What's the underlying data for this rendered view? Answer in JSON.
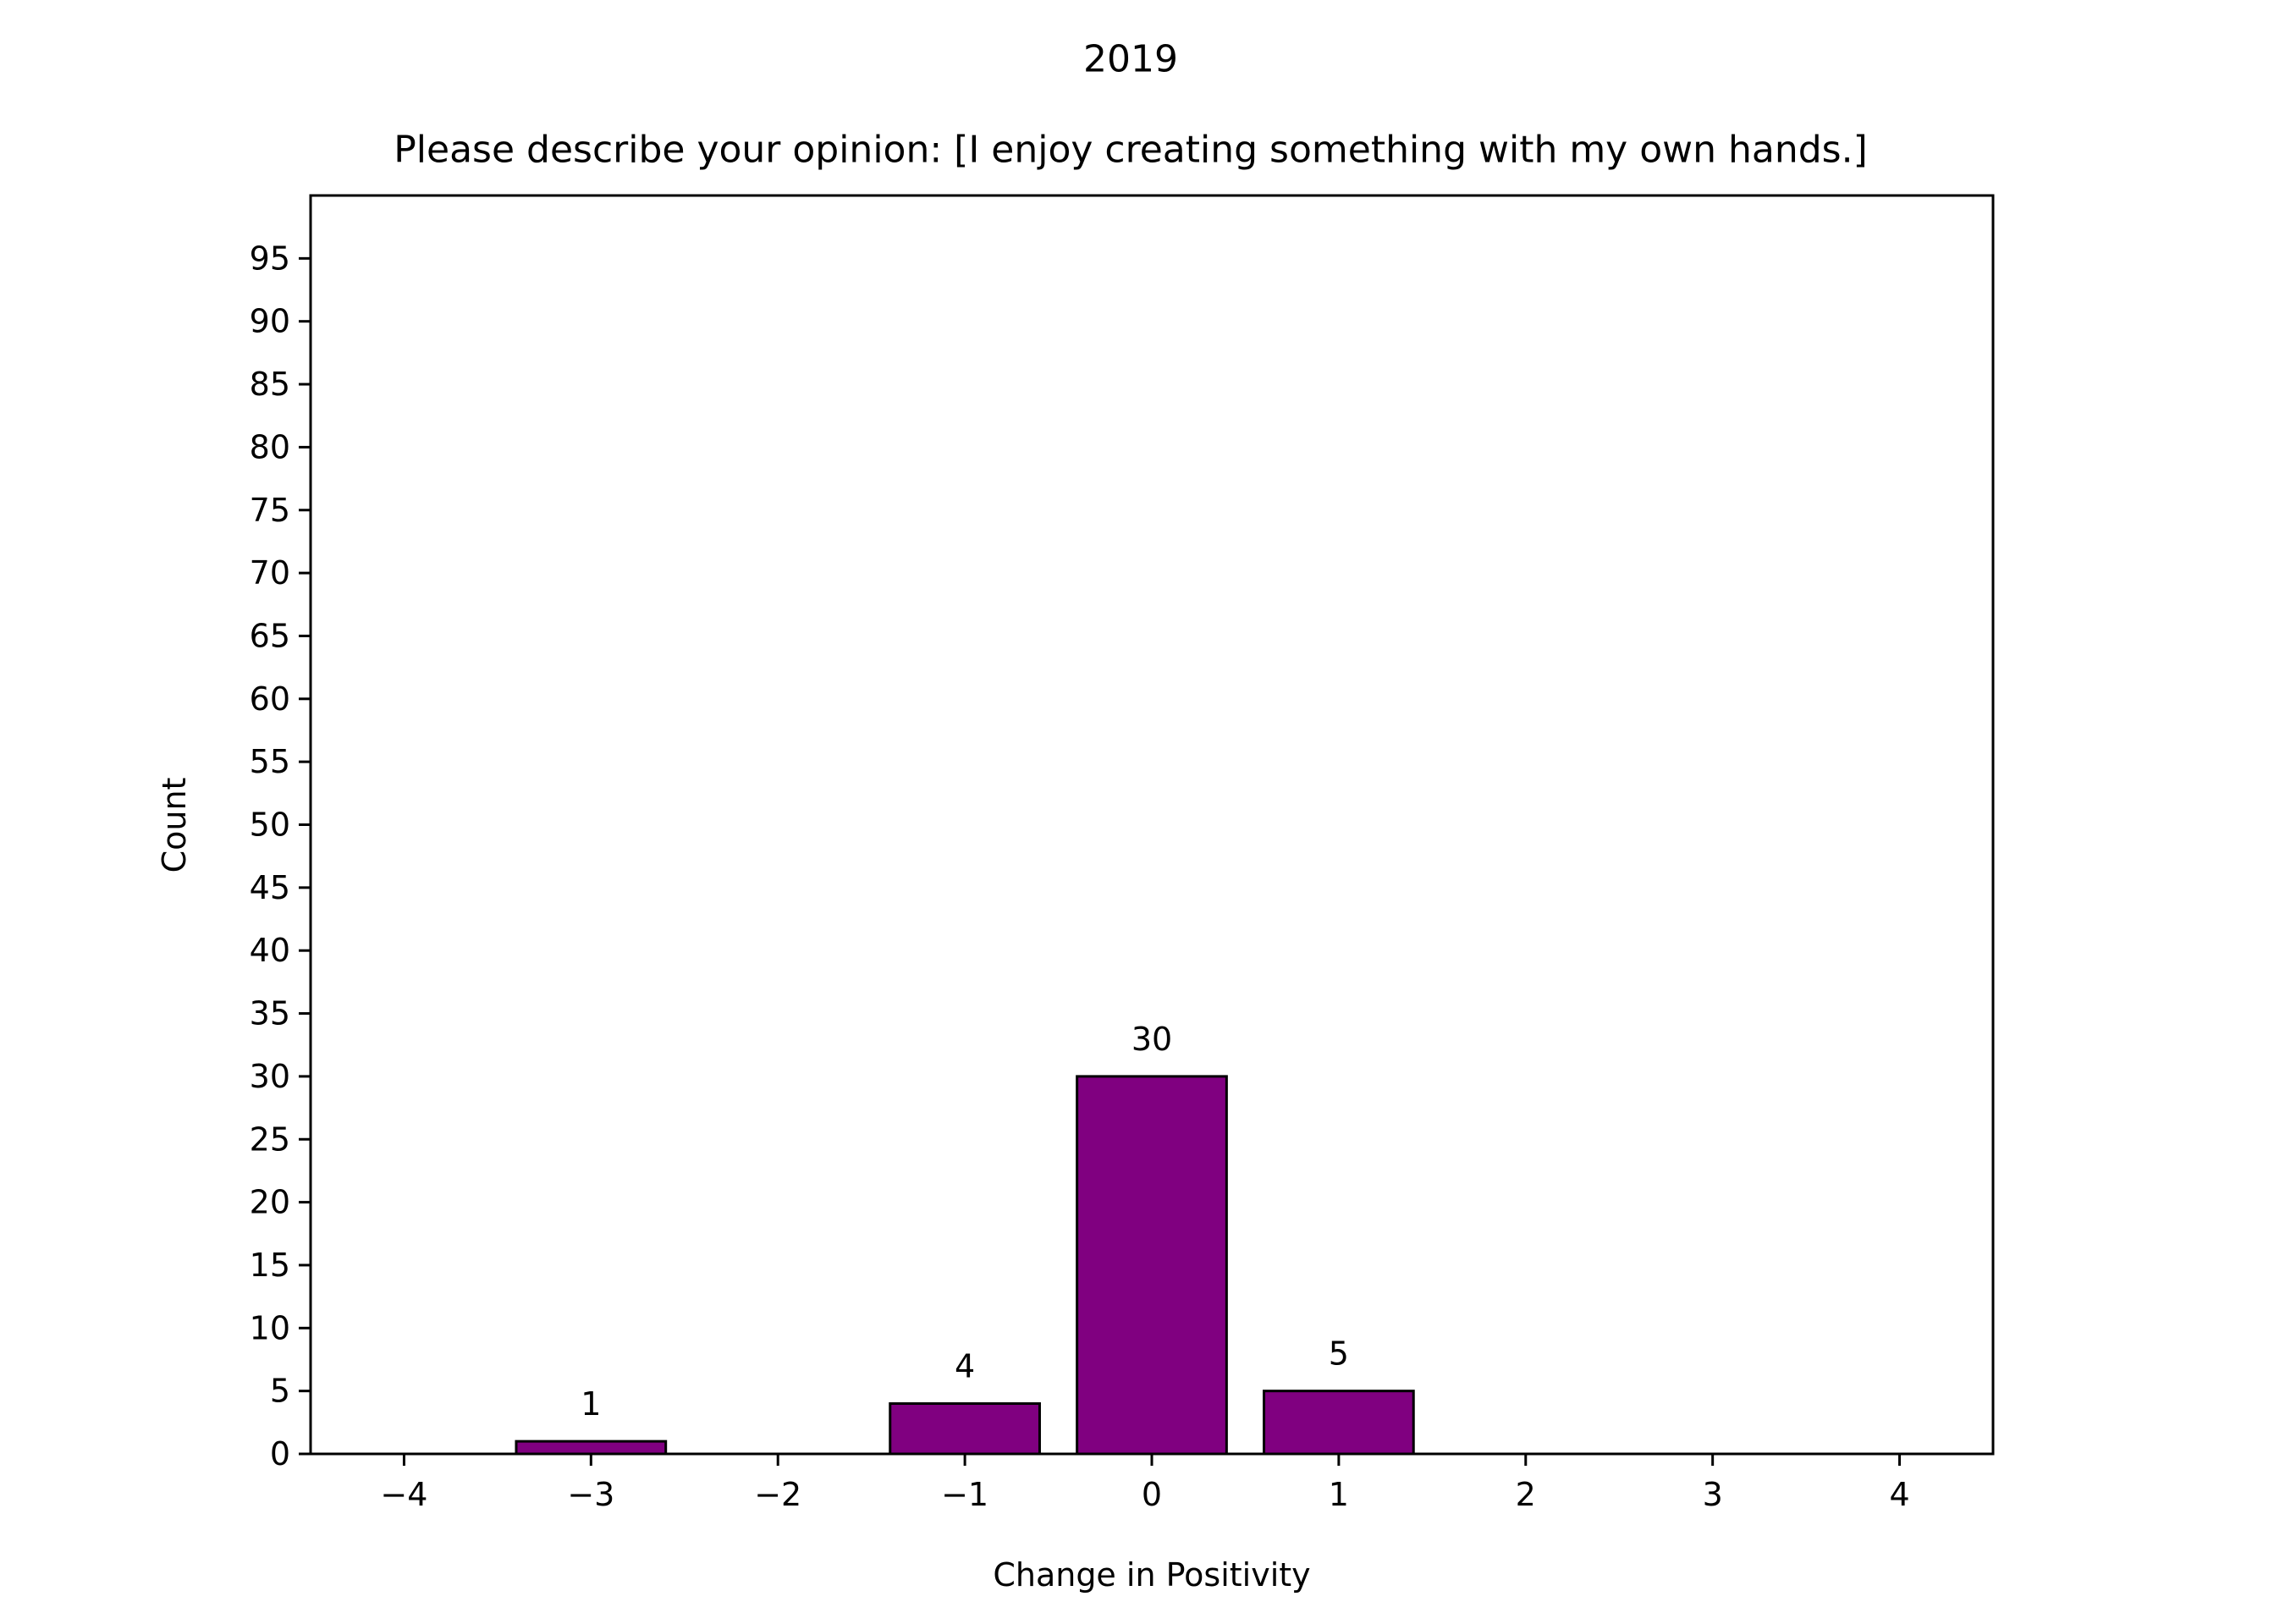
{
  "chart_data": {
    "type": "bar",
    "suptitle": "2019",
    "title": "Please describe your opinion: [I enjoy creating something with my own hands.]",
    "xlabel": "Change in Positivity",
    "ylabel": "Count",
    "x": [
      -3,
      -1,
      0,
      1
    ],
    "values": [
      1,
      4,
      30,
      5
    ],
    "data_labels": [
      "1",
      "4",
      "30",
      "5"
    ],
    "xlim": [
      -4.5,
      4.5
    ],
    "ylim": [
      0,
      100
    ],
    "xticks": [
      -4,
      -3,
      -2,
      -1,
      0,
      1,
      2,
      3,
      4
    ],
    "xtick_labels": [
      "−4",
      "−3",
      "−2",
      "−1",
      "0",
      "1",
      "2",
      "3",
      "4"
    ],
    "yticks": [
      0,
      5,
      10,
      15,
      20,
      25,
      30,
      35,
      40,
      45,
      50,
      55,
      60,
      65,
      70,
      75,
      80,
      85,
      90,
      95
    ],
    "ytick_labels": [
      "0",
      "5",
      "10",
      "15",
      "20",
      "25",
      "30",
      "35",
      "40",
      "45",
      "50",
      "55",
      "60",
      "65",
      "70",
      "75",
      "80",
      "85",
      "90",
      "95"
    ],
    "bar_width": 0.8,
    "bar_color": "#800080",
    "edge_color": "#000000",
    "grid": false,
    "legend": "none"
  }
}
